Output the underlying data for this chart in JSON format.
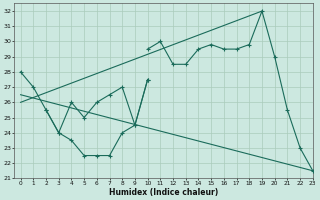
{
  "xlabel": "Humidex (Indice chaleur)",
  "xlim": [
    -0.5,
    23
  ],
  "ylim": [
    21,
    32.5
  ],
  "yticks": [
    21,
    22,
    23,
    24,
    25,
    26,
    27,
    28,
    29,
    30,
    31,
    32
  ],
  "xticks": [
    0,
    1,
    2,
    3,
    4,
    5,
    6,
    7,
    8,
    9,
    10,
    11,
    12,
    13,
    14,
    15,
    16,
    17,
    18,
    19,
    20,
    21,
    22,
    23
  ],
  "bg_color": "#cce8e0",
  "grid_color": "#aaccbb",
  "line_color": "#1a6b5a",
  "line1_x": [
    10,
    11,
    12,
    13,
    14,
    15,
    16,
    17,
    18,
    19,
    20,
    21,
    22,
    23
  ],
  "line1_y": [
    29.5,
    30.0,
    28.5,
    28.5,
    29.5,
    29.8,
    29.5,
    29.5,
    29.8,
    32.0,
    29.0,
    25.5,
    23.0,
    21.5
  ],
  "line2_x": [
    0,
    19
  ],
  "line2_y": [
    26.0,
    32.0
  ],
  "line3_x": [
    0,
    1,
    2,
    3,
    4,
    5,
    6,
    7,
    8,
    9,
    10
  ],
  "line3_y": [
    28.0,
    27.0,
    25.5,
    24.0,
    23.5,
    22.5,
    22.5,
    22.5,
    24.0,
    24.5,
    27.5
  ],
  "line4_x": [
    0,
    23
  ],
  "line4_y": [
    26.5,
    21.5
  ],
  "line5_x": [
    2,
    3,
    4,
    5,
    6,
    7,
    8,
    9,
    10
  ],
  "line5_y": [
    25.5,
    24.0,
    26.0,
    25.0,
    26.0,
    26.5,
    27.0,
    24.5,
    27.5
  ]
}
